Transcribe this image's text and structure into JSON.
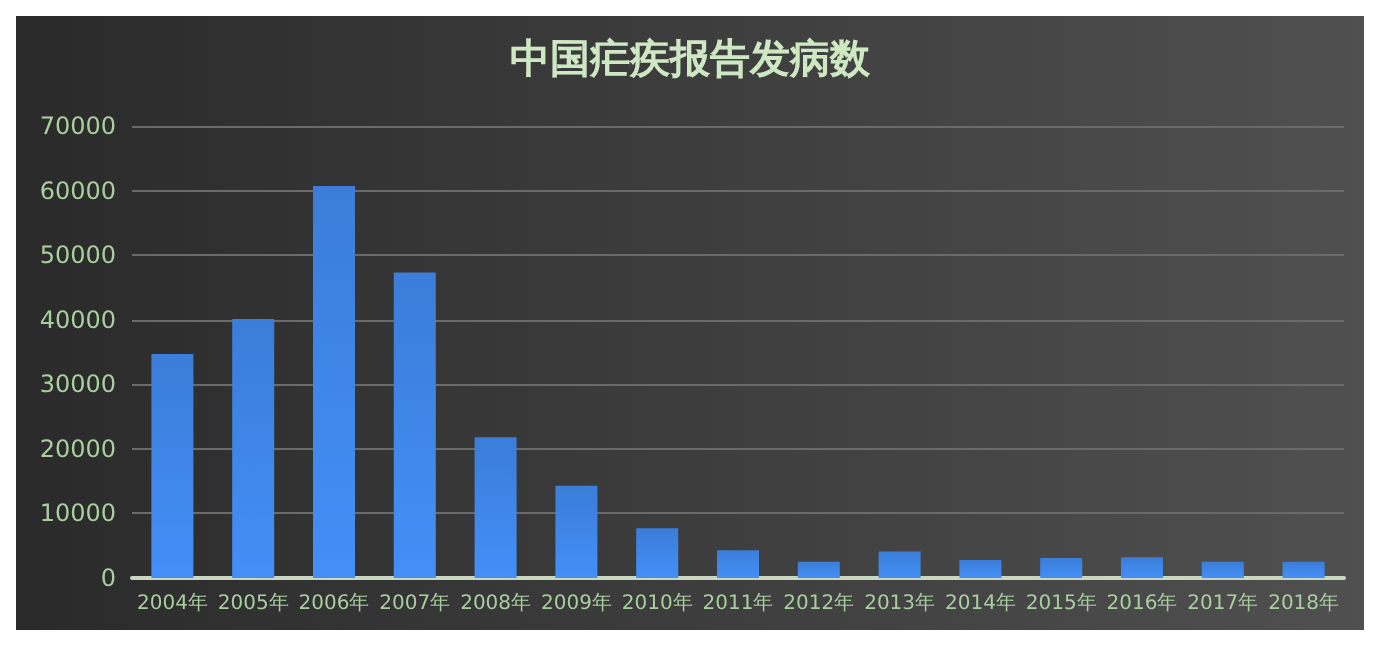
{
  "chart_data": {
    "type": "bar",
    "title": "中国疟疾报告发病数",
    "categories": [
      "2004年",
      "2005年",
      "2006年",
      "2007年",
      "2008年",
      "2009年",
      "2010年",
      "2011年",
      "2012年",
      "2013年",
      "2014年",
      "2015年",
      "2016年",
      "2017年",
      "2018年"
    ],
    "values": [
      34700,
      40100,
      60700,
      47300,
      21800,
      14300,
      7700,
      4300,
      2500,
      4100,
      2800,
      3100,
      3200,
      2500,
      2500
    ],
    "color": "#3b7dd8",
    "ylim": [
      0,
      70000
    ],
    "yticks": [
      0,
      10000,
      20000,
      30000,
      40000,
      50000,
      60000,
      70000
    ],
    "grid": "y"
  }
}
